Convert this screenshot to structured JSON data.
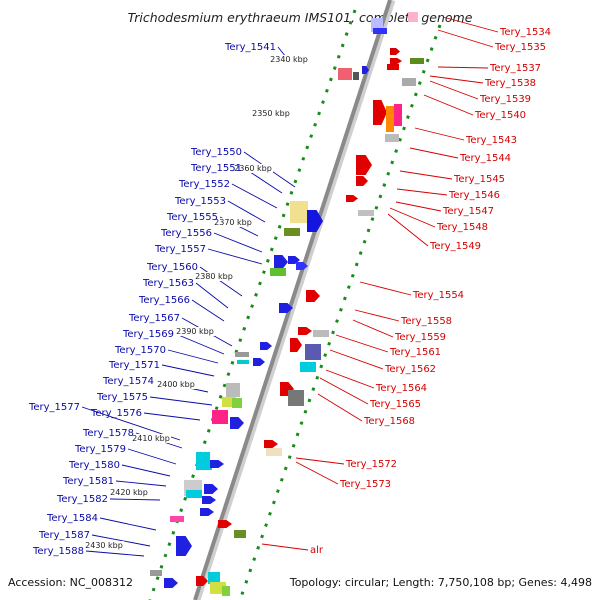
{
  "title": "Trichodesmium erythraeum IMS101, complete genome",
  "footer": {
    "accession": "Accession: NC_008312",
    "summary": "Topology: circular; Length: 7,750,108 bp; Genes: 4,498"
  },
  "scale_labels": [
    "2340 kbp",
    "2350 kbp",
    "2360 kbp",
    "2370 kbp",
    "2380 kbp",
    "2390 kbp",
    "2400 kbp",
    "2410 kbp",
    "2420 kbp",
    "2430 kbp"
  ],
  "left_genes": [
    "Tery_1541",
    "Tery_1550",
    "Tery_1551",
    "Tery_1552",
    "Tery_1553",
    "Tery_1555",
    "Tery_1556",
    "Tery_1557",
    "Tery_1560",
    "Tery_1563",
    "Tery_1566",
    "Tery_1567",
    "Tery_1569",
    "Tery_1570",
    "Tery_1571",
    "Tery_1574",
    "Tery_1575",
    "Tery_1577",
    "Tery_1576",
    "Tery_1578",
    "Tery_1579",
    "Tery_1580",
    "Tery_1581",
    "Tery_1582",
    "Tery_1584",
    "Tery_1587",
    "Tery_1588"
  ],
  "right_genes": [
    "Tery_1534",
    "Tery_1535",
    "Tery_1537",
    "Tery_1538",
    "Tery_1539",
    "Tery_1540",
    "Tery_1543",
    "Tery_1544",
    "Tery_1545",
    "Tery_1546",
    "Tery_1547",
    "Tery_1548",
    "Tery_1549",
    "Tery_1554",
    "Tery_1558",
    "Tery_1559",
    "Tery_1561",
    "Tery_1562",
    "Tery_1564",
    "Tery_1565",
    "Tery_1568",
    "Tery_1572",
    "Tery_1573",
    "alr"
  ],
  "colors": {
    "forward_strand": "#e00000",
    "reverse_strand": "#0000e0",
    "backbone": "#8a8a8a",
    "tick": "#1a8a1a"
  }
}
